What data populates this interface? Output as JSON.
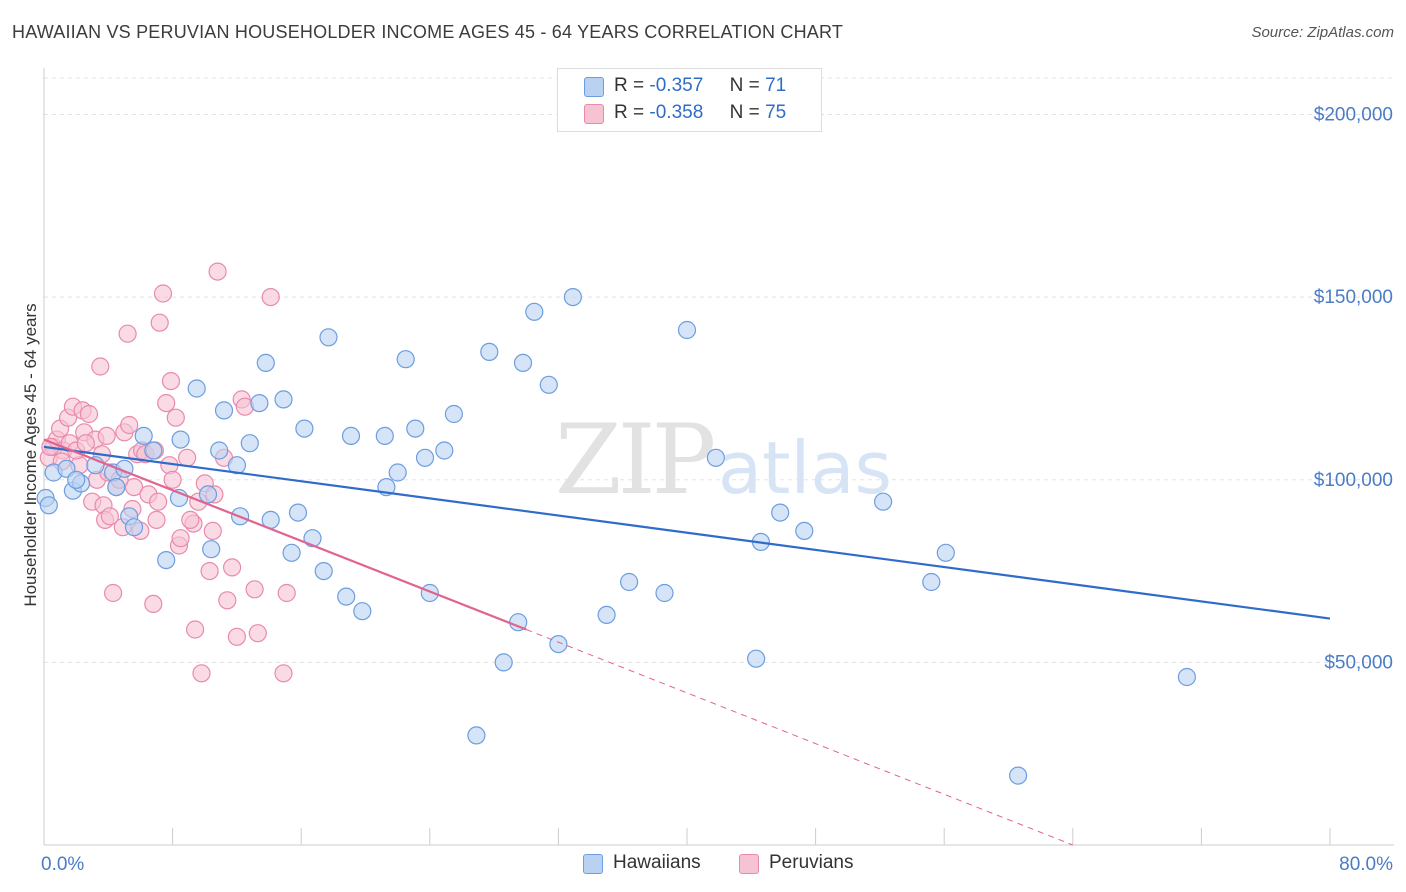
{
  "title": "HAWAIIAN VS PERUVIAN HOUSEHOLDER INCOME AGES 45 - 64 YEARS CORRELATION CHART",
  "source": "Source: ZipAtlas.com",
  "watermark": {
    "zip": "ZIP",
    "atlas": "atlas"
  },
  "legend": {
    "r_label": "R =",
    "n_label": "N =",
    "hawaiians": {
      "r": "-0.357",
      "n": "71"
    },
    "peruvians": {
      "r": "-0.358",
      "n": "75"
    }
  },
  "bottom_legend": {
    "hawaiians": "Hawaiians",
    "peruvians": "Peruvians"
  },
  "colors": {
    "hawaiians_fill": "#b9d2f2",
    "hawaiians_stroke": "#6d9de0",
    "hawaiians_line": "#2f6cc9",
    "peruvians_fill": "#f6c3d3",
    "peruvians_stroke": "#e98aab",
    "peruvians_line": "#e0648f",
    "tick_label": "#4a7cc7",
    "grid": "#e3e3e3"
  },
  "chart_data": {
    "type": "scatter",
    "title": "HAWAIIAN VS PERUVIAN HOUSEHOLDER INCOME AGES 45 - 64 YEARS CORRELATION CHART",
    "xlabel": "",
    "ylabel": "Householder Income Ages 45 - 64 years",
    "xlim": [
      0,
      80
    ],
    "ylim": [
      0,
      210000
    ],
    "x_tick_labels": [
      "0.0%",
      "80.0%"
    ],
    "y_ticks": [
      50000,
      100000,
      150000,
      200000
    ],
    "y_tick_labels": [
      "$50,000",
      "$100,000",
      "$150,000",
      "$200,000"
    ],
    "grid": true,
    "legend_position": "top-center",
    "series": [
      {
        "name": "Hawaiians",
        "points": [
          [
            0.1,
            95000
          ],
          [
            0.6,
            102000
          ],
          [
            1.4,
            103000
          ],
          [
            1.8,
            97000
          ],
          [
            2.3,
            99000
          ],
          [
            3.2,
            104000
          ],
          [
            4.3,
            102000
          ],
          [
            4.5,
            98000
          ],
          [
            5.3,
            90000
          ],
          [
            5.6,
            87000
          ],
          [
            6.2,
            112000
          ],
          [
            6.8,
            108000
          ],
          [
            7.6,
            78000
          ],
          [
            8.4,
            95000
          ],
          [
            8.5,
            111000
          ],
          [
            9.5,
            125000
          ],
          [
            10.2,
            96000
          ],
          [
            10.4,
            81000
          ],
          [
            10.9,
            108000
          ],
          [
            11.2,
            119000
          ],
          [
            12.0,
            104000
          ],
          [
            12.2,
            90000
          ],
          [
            12.8,
            110000
          ],
          [
            13.4,
            121000
          ],
          [
            13.8,
            132000
          ],
          [
            14.1,
            89000
          ],
          [
            14.9,
            122000
          ],
          [
            15.4,
            80000
          ],
          [
            15.8,
            91000
          ],
          [
            16.2,
            114000
          ],
          [
            16.7,
            84000
          ],
          [
            17.4,
            75000
          ],
          [
            17.7,
            139000
          ],
          [
            18.8,
            68000
          ],
          [
            19.1,
            112000
          ],
          [
            19.8,
            64000
          ],
          [
            21.2,
            112000
          ],
          [
            21.3,
            98000
          ],
          [
            22.0,
            102000
          ],
          [
            22.5,
            133000
          ],
          [
            23.1,
            114000
          ],
          [
            23.7,
            106000
          ],
          [
            24.0,
            69000
          ],
          [
            24.9,
            108000
          ],
          [
            25.5,
            118000
          ],
          [
            26.9,
            30000
          ],
          [
            27.7,
            135000
          ],
          [
            28.6,
            50000
          ],
          [
            29.5,
            61000
          ],
          [
            29.8,
            132000
          ],
          [
            30.5,
            146000
          ],
          [
            31.4,
            126000
          ],
          [
            32.0,
            55000
          ],
          [
            32.9,
            150000
          ],
          [
            35.0,
            63000
          ],
          [
            36.4,
            72000
          ],
          [
            38.6,
            69000
          ],
          [
            40.0,
            141000
          ],
          [
            41.8,
            106000
          ],
          [
            44.3,
            51000
          ],
          [
            44.6,
            83000
          ],
          [
            45.8,
            91000
          ],
          [
            47.3,
            86000
          ],
          [
            52.2,
            94000
          ],
          [
            55.2,
            72000
          ],
          [
            56.1,
            80000
          ],
          [
            60.6,
            19000
          ],
          [
            71.1,
            46000
          ],
          [
            0.3,
            93000
          ],
          [
            2.0,
            100000
          ],
          [
            5.0,
            103000
          ]
        ]
      },
      {
        "name": "Peruvians",
        "points": [
          [
            0.3,
            106000
          ],
          [
            0.6,
            109000
          ],
          [
            0.8,
            111000
          ],
          [
            1.0,
            114000
          ],
          [
            1.2,
            108000
          ],
          [
            1.5,
            117000
          ],
          [
            1.6,
            110000
          ],
          [
            1.8,
            120000
          ],
          [
            2.2,
            104000
          ],
          [
            2.4,
            119000
          ],
          [
            2.5,
            113000
          ],
          [
            2.8,
            118000
          ],
          [
            3.0,
            94000
          ],
          [
            3.2,
            111000
          ],
          [
            3.3,
            100000
          ],
          [
            3.5,
            131000
          ],
          [
            3.6,
            107000
          ],
          [
            3.7,
            93000
          ],
          [
            3.8,
            89000
          ],
          [
            4.0,
            102000
          ],
          [
            4.1,
            90000
          ],
          [
            4.3,
            69000
          ],
          [
            4.5,
            98000
          ],
          [
            4.9,
            87000
          ],
          [
            5.0,
            113000
          ],
          [
            5.2,
            140000
          ],
          [
            5.3,
            115000
          ],
          [
            5.5,
            92000
          ],
          [
            5.6,
            98000
          ],
          [
            5.8,
            107000
          ],
          [
            6.1,
            108000
          ],
          [
            6.3,
            107000
          ],
          [
            6.5,
            96000
          ],
          [
            6.8,
            66000
          ],
          [
            7.0,
            89000
          ],
          [
            7.1,
            94000
          ],
          [
            7.2,
            143000
          ],
          [
            7.4,
            151000
          ],
          [
            7.6,
            121000
          ],
          [
            7.8,
            104000
          ],
          [
            7.9,
            127000
          ],
          [
            8.2,
            117000
          ],
          [
            8.4,
            82000
          ],
          [
            8.5,
            84000
          ],
          [
            8.9,
            106000
          ],
          [
            9.3,
            88000
          ],
          [
            9.4,
            59000
          ],
          [
            9.6,
            94000
          ],
          [
            9.8,
            47000
          ],
          [
            10.0,
            99000
          ],
          [
            10.3,
            75000
          ],
          [
            10.5,
            86000
          ],
          [
            10.8,
            157000
          ],
          [
            11.2,
            106000
          ],
          [
            11.4,
            67000
          ],
          [
            11.7,
            76000
          ],
          [
            12.0,
            57000
          ],
          [
            12.3,
            122000
          ],
          [
            12.5,
            120000
          ],
          [
            13.1,
            70000
          ],
          [
            13.3,
            58000
          ],
          [
            14.1,
            150000
          ],
          [
            14.9,
            47000
          ],
          [
            15.1,
            69000
          ],
          [
            0.4,
            109000
          ],
          [
            1.1,
            105000
          ],
          [
            2.0,
            108000
          ],
          [
            2.6,
            110000
          ],
          [
            3.9,
            112000
          ],
          [
            4.7,
            100000
          ],
          [
            6.0,
            86000
          ],
          [
            6.9,
            108000
          ],
          [
            8.0,
            100000
          ],
          [
            9.1,
            89000
          ],
          [
            10.6,
            96000
          ]
        ]
      }
    ],
    "trend_lines": [
      {
        "name": "Hawaiians",
        "from": [
          0,
          109000
        ],
        "to": [
          80,
          62000
        ],
        "style": "solid"
      },
      {
        "name": "Peruvians",
        "from": [
          0,
          111000
        ],
        "to": [
          30,
          59000
        ],
        "style": "solid"
      },
      {
        "name": "Peruvians",
        "from": [
          30,
          59000
        ],
        "to": [
          64,
          0
        ],
        "style": "dashed"
      }
    ]
  }
}
